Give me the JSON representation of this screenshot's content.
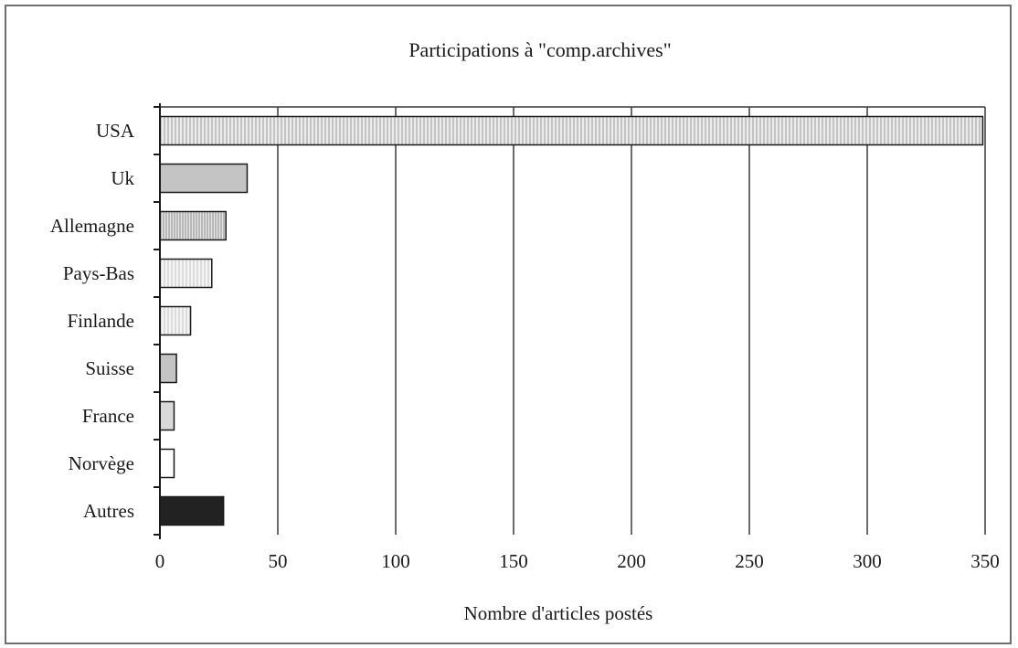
{
  "chart_data": {
    "type": "bar",
    "orientation": "horizontal",
    "title": "Participations à \"comp.archives\"",
    "xlabel": "Nombre d'articles postés",
    "ylabel": "",
    "xlim": [
      0,
      350
    ],
    "xticks": [
      "0",
      "50",
      "100",
      "150",
      "200",
      "250",
      "300",
      "350"
    ],
    "grid": "vertical",
    "categories": [
      "USA",
      "Uk",
      "Allemagne",
      "Pays-Bas",
      "Finlande",
      "Suisse",
      "France",
      "Norvège",
      "Autres"
    ],
    "values": [
      349,
      37,
      28,
      22,
      13,
      7,
      6,
      6,
      27
    ],
    "bar_fills": [
      "vertical-hatch-light",
      "solid-gray",
      "vertical-hatch",
      "vertical-hatch-sparse",
      "vertical-hatch-sparse",
      "solid-gray",
      "solid-gray-light",
      "white",
      "solid-black"
    ],
    "colors": {
      "axis": "#1a1a1a",
      "grid": "#3a3a3a",
      "bar_outline": "#1a1a1a",
      "hatch_bg": "#ececec",
      "hatch_line": "#9a9a9a",
      "gray": "#c4c4c4",
      "gray_light": "#d9d9d9",
      "black": "#222222"
    }
  }
}
